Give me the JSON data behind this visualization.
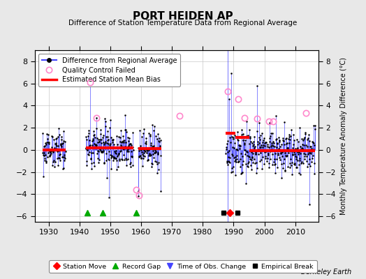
{
  "title": "PORT HEIDEN AP",
  "subtitle": "Difference of Station Temperature Data from Regional Average",
  "ylabel": "Monthly Temperature Anomaly Difference (°C)",
  "credit": "Berkeley Earth",
  "ylim": [
    -6.5,
    9.0
  ],
  "xlim": [
    1925.5,
    2017.5
  ],
  "background_color": "#e8e8e8",
  "plot_bg_color": "#ffffff",
  "grid_color": "#c8c8c8",
  "data_line_color": "#4444ff",
  "marker_color": "#000000",
  "qc_color": "#ff88cc",
  "bias_color": "#ff0000",
  "xticks": [
    1930,
    1940,
    1950,
    1960,
    1970,
    1980,
    1990,
    2000,
    2010
  ],
  "yticks": [
    -6,
    -4,
    -2,
    0,
    2,
    4,
    6,
    8
  ],
  "segments": [
    {
      "start": 1928.0,
      "end": 1935.5,
      "bias": 0.0
    },
    {
      "start": 1942.0,
      "end": 1957.5,
      "bias": 0.2
    },
    {
      "start": 1959.0,
      "end": 1966.5,
      "bias": 0.1
    },
    {
      "start": 1987.5,
      "end": 2016.5,
      "bias": -0.05
    }
  ],
  "bias_segments": [
    {
      "start": 1928.0,
      "end": 1935.5,
      "value": 0.0
    },
    {
      "start": 1942.0,
      "end": 1957.5,
      "value": 0.2
    },
    {
      "start": 1959.0,
      "end": 1966.5,
      "value": 0.1
    },
    {
      "start": 1987.5,
      "end": 1990.5,
      "value": 1.5
    },
    {
      "start": 1990.5,
      "end": 1995.0,
      "value": 1.1
    },
    {
      "start": 1995.0,
      "end": 2016.5,
      "value": -0.1
    }
  ],
  "record_gaps": [
    1942.5,
    1947.5,
    1958.5
  ],
  "station_moves": [
    1988.7
  ],
  "obs_change_lines": [
    1988.0
  ],
  "empirical_breaks": [
    1986.8,
    1991.2
  ],
  "qc_failed": [
    [
      1943.5,
      6.1
    ],
    [
      1945.5,
      2.9
    ],
    [
      1958.5,
      -3.6
    ],
    [
      1959.2,
      -4.1
    ],
    [
      1972.5,
      3.1
    ],
    [
      1988.0,
      5.3
    ],
    [
      1991.5,
      4.6
    ],
    [
      1993.5,
      2.9
    ],
    [
      1997.5,
      2.8
    ],
    [
      2001.5,
      2.6
    ],
    [
      2002.8,
      2.6
    ],
    [
      2013.5,
      3.3
    ]
  ],
  "seeds": [
    11,
    21,
    31,
    41
  ]
}
